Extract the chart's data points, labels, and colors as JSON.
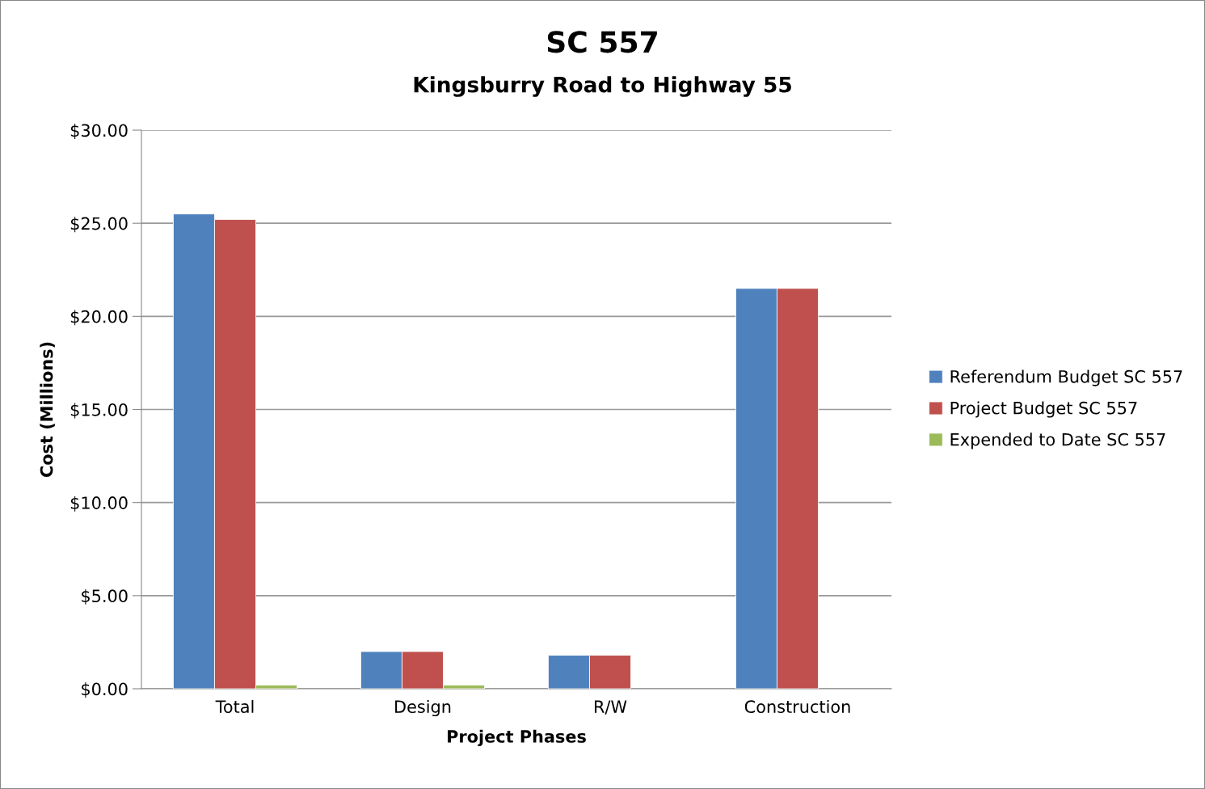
{
  "chart_data": {
    "type": "bar",
    "title": "SC 557",
    "subtitle": "Kingsburry Road to Highway 55",
    "xlabel": "Project Phases",
    "ylabel": "Cost (Millions)",
    "categories": [
      "Total",
      "Design",
      "R/W",
      "Construction"
    ],
    "series": [
      {
        "name": "Referendum Budget SC 557",
        "color": "#4f81bd",
        "values": [
          25.5,
          2.0,
          1.8,
          21.5
        ]
      },
      {
        "name": "Project Budget SC 557",
        "color": "#c0504d",
        "values": [
          25.2,
          2.0,
          1.8,
          21.5
        ]
      },
      {
        "name": "Expended to Date SC 557",
        "color": "#9bbb59",
        "values": [
          0.2,
          0.2,
          null,
          null
        ]
      }
    ],
    "ylim": [
      0,
      30
    ],
    "yticks": [
      {
        "value": 0,
        "label": "$0.00"
      },
      {
        "value": 5,
        "label": "$5.00"
      },
      {
        "value": 10,
        "label": "$10.00"
      },
      {
        "value": 15,
        "label": "$15.00"
      },
      {
        "value": 20,
        "label": "$20.00"
      },
      {
        "value": 25,
        "label": "$25.00"
      },
      {
        "value": 30,
        "label": "$30.00"
      }
    ],
    "grid": "y",
    "legend": "right"
  }
}
